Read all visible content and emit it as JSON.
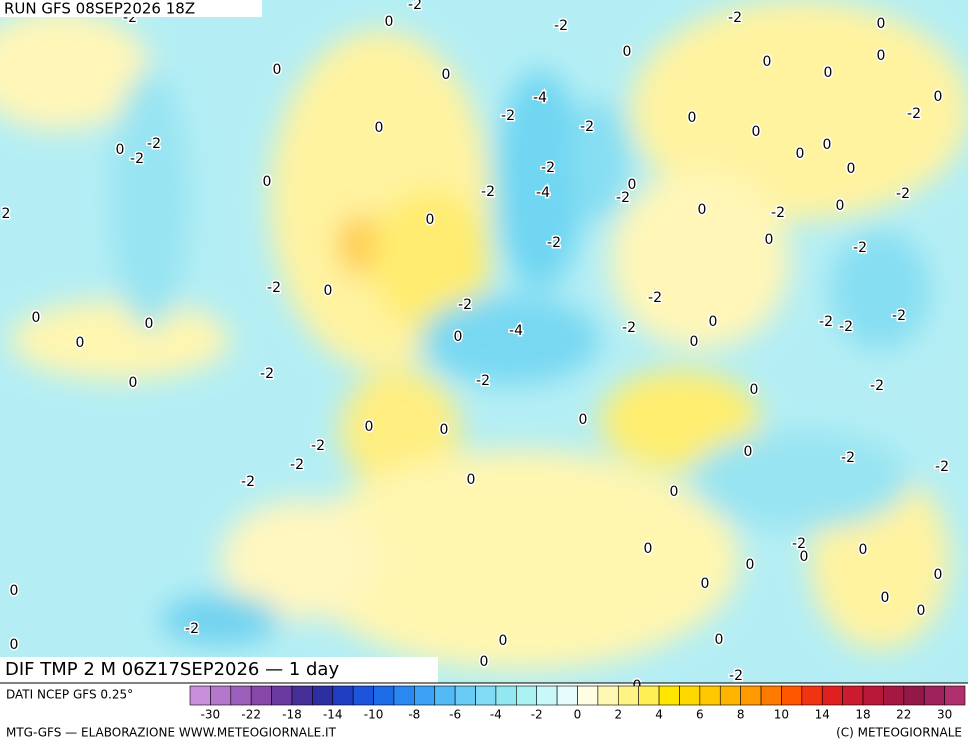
{
  "header": {
    "run": "RUN GFS 08SEP2026 18Z"
  },
  "map": {
    "title": "DIF TMP 2 M 06Z17SEP2026 — 1 day",
    "labels": [
      "-2",
      "0",
      "-2",
      "-2",
      "-2",
      "0",
      "0",
      "0",
      "0",
      "0",
      "0",
      "0",
      "-4",
      "-2",
      "-2",
      "0",
      "0",
      "-2",
      "0",
      "0",
      "0",
      "0",
      "-2",
      "0",
      "-2",
      "-2",
      "0",
      "0",
      "-2",
      "-4",
      "0",
      "-2",
      "-2",
      "2",
      "0",
      "-2",
      "0",
      "0",
      "-2",
      "0",
      "-2",
      "-2",
      "0",
      "-2",
      "-2",
      "0",
      "0",
      "-4",
      "-2",
      "0",
      "-2",
      "-2",
      "-2",
      "0",
      "0",
      "0",
      "-2",
      "-2",
      "0",
      "0",
      "-2",
      "0",
      "0",
      "0",
      "-2",
      "0",
      "-2",
      "-2",
      "-2",
      "0",
      "-2",
      "0",
      "-2",
      "0",
      "0",
      "0",
      "0",
      "0",
      "0",
      "0",
      "0",
      "0",
      "-2",
      "0",
      "0",
      "0",
      "0",
      "0",
      "-2"
    ]
  },
  "legend": {
    "source": "DATI NCEP GFS 0.25°",
    "colors": [
      "#c890dc",
      "#b377cc",
      "#9c5fbb",
      "#8748aa",
      "#6b3aa0",
      "#452f96",
      "#2c2ea2",
      "#1f3ec2",
      "#1c54dc",
      "#1e6de8",
      "#2a88f0",
      "#3ca2f5",
      "#54baf6",
      "#6acbf6",
      "#80dcf5",
      "#92e8f1",
      "#aaf1f1",
      "#c8f8f8",
      "#e6fcfc",
      "#fffde2",
      "#fff8b4",
      "#fff384",
      "#ffee54",
      "#ffe600",
      "#ffd800",
      "#ffc800",
      "#ffb400",
      "#ff9a00",
      "#ff7a00",
      "#ff5600",
      "#f03412",
      "#e02020",
      "#cc1a2e",
      "#b81838",
      "#a41842",
      "#921848",
      "#a0225c",
      "#b0306e"
    ],
    "ticks": [
      -30,
      -22,
      -18,
      -14,
      -10,
      -8,
      -6,
      -4,
      -2,
      0,
      2,
      4,
      6,
      8,
      10,
      14,
      18,
      22,
      30
    ]
  },
  "footer": {
    "left": "MTG-GFS — ELABORAZIONE WWW.METEOGIORNALE.IT",
    "right": "(C) METEOGIORNALE"
  }
}
